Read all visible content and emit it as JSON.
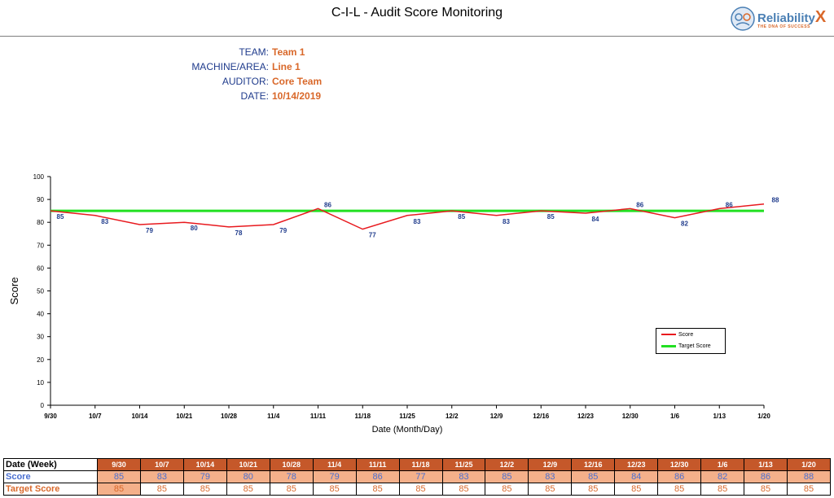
{
  "title": "C-I-L - Audit Score Monitoring",
  "logo": {
    "word": "Reliability",
    "x": "X",
    "tagline": "THE DNA OF SUCCESS",
    "name": "reliabilityx-logo"
  },
  "info": [
    {
      "label": "TEAM:",
      "value": "Team 1"
    },
    {
      "label": "MACHINE/AREA:",
      "value": "Line 1"
    },
    {
      "label": "AUDITOR:",
      "value": "Core Team"
    },
    {
      "label": "DATE:",
      "value": "10/14/2019"
    }
  ],
  "colors": {
    "score": "#e8191e",
    "target": "#22e022",
    "label": "#1f3b8c",
    "accent": "#d9682a"
  },
  "chart_data": {
    "type": "line",
    "title": "",
    "xlabel": "Date (Month/Day)",
    "ylabel": "Score",
    "ylim": [
      0,
      100
    ],
    "yticks": [
      0,
      10,
      20,
      30,
      40,
      50,
      60,
      70,
      80,
      90,
      100
    ],
    "categories": [
      "9/30",
      "10/7",
      "10/14",
      "10/21",
      "10/28",
      "11/4",
      "11/11",
      "11/18",
      "11/25",
      "12/2",
      "12/9",
      "12/16",
      "12/23",
      "12/30",
      "1/6",
      "1/13",
      "1/20"
    ],
    "series": [
      {
        "name": "Score",
        "values": [
          85,
          83,
          79,
          80,
          78,
          79,
          86,
          77,
          83,
          85,
          83,
          85,
          84,
          86,
          82,
          86,
          88
        ]
      },
      {
        "name": "Target Score",
        "values": [
          85,
          85,
          85,
          85,
          85,
          85,
          85,
          85,
          85,
          85,
          85,
          85,
          85,
          85,
          85,
          85,
          85
        ]
      }
    ],
    "grid": false,
    "legend": "bottom-right"
  },
  "table": {
    "header_label": "Date (Week)",
    "score_label": "Score",
    "target_label": "Target Score"
  }
}
